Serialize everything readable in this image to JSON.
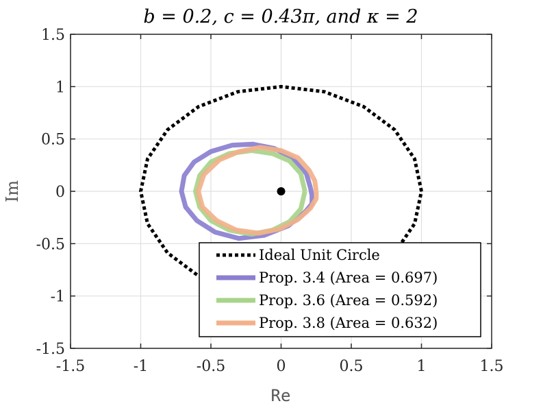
{
  "chart_data": {
    "type": "line",
    "title": "b = 0.2,  c = 0.43π, and κ = 2",
    "xlabel": "Re",
    "ylabel": "Im",
    "xlim": [
      -1.5,
      1.5
    ],
    "ylim": [
      -1.5,
      1.5
    ],
    "xticks": [
      -1.5,
      -1,
      -0.5,
      0,
      0.5,
      1,
      1.5
    ],
    "yticks": [
      -1.5,
      -1,
      -0.5,
      0,
      0.5,
      1,
      1.5
    ],
    "xtick_labels": [
      "-1.5",
      "-1",
      "-0.5",
      "0",
      "0.5",
      "1",
      "1.5"
    ],
    "ytick_labels": [
      "-1.5",
      "-1",
      "-0.5",
      "0",
      "0.5",
      "1",
      "1.5"
    ],
    "grid": true,
    "legend_position": "bottom-right",
    "center_point": {
      "x": 0,
      "y": 0
    },
    "series": [
      {
        "name": "Ideal Unit Circle",
        "style": "dotted",
        "color": "#000000",
        "points": [
          [
            1,
            0
          ],
          [
            0.951,
            0.309
          ],
          [
            0.809,
            0.588
          ],
          [
            0.588,
            0.809
          ],
          [
            0.309,
            0.951
          ],
          [
            0,
            1
          ],
          [
            -0.309,
            0.951
          ],
          [
            -0.588,
            0.809
          ],
          [
            -0.809,
            0.588
          ],
          [
            -0.951,
            0.309
          ],
          [
            -1,
            0
          ],
          [
            -0.951,
            -0.309
          ],
          [
            -0.809,
            -0.588
          ],
          [
            -0.588,
            -0.809
          ],
          [
            -0.309,
            -0.951
          ],
          [
            0,
            -1
          ],
          [
            0.309,
            -0.951
          ],
          [
            0.588,
            -0.809
          ],
          [
            0.809,
            -0.588
          ],
          [
            0.951,
            -0.309
          ],
          [
            1,
            0
          ]
        ]
      },
      {
        "name": "Prop. 3.4 (Area = 0.697)",
        "style": "solid",
        "color": "#8a7fd0",
        "points": [
          [
            0.21,
            0.03
          ],
          [
            0.18,
            0.17
          ],
          [
            0.08,
            0.32
          ],
          [
            -0.05,
            0.41
          ],
          [
            -0.2,
            0.45
          ],
          [
            -0.35,
            0.44
          ],
          [
            -0.5,
            0.38
          ],
          [
            -0.62,
            0.28
          ],
          [
            -0.69,
            0.15
          ],
          [
            -0.71,
            0.0
          ],
          [
            -0.68,
            -0.15
          ],
          [
            -0.6,
            -0.28
          ],
          [
            -0.47,
            -0.39
          ],
          [
            -0.3,
            -0.45
          ],
          [
            -0.12,
            -0.42
          ],
          [
            0.05,
            -0.33
          ],
          [
            0.17,
            -0.2
          ],
          [
            0.22,
            -0.12
          ],
          [
            0.22,
            -0.04
          ],
          [
            0.21,
            0.03
          ]
        ]
      },
      {
        "name": "Prop. 3.6 (Area = 0.592)",
        "style": "solid",
        "color": "#a8d48a",
        "points": [
          [
            0.17,
            0.0
          ],
          [
            0.14,
            0.17
          ],
          [
            0.06,
            0.29
          ],
          [
            -0.06,
            0.36
          ],
          [
            -0.21,
            0.39
          ],
          [
            -0.37,
            0.36
          ],
          [
            -0.5,
            0.28
          ],
          [
            -0.58,
            0.15
          ],
          [
            -0.61,
            0.0
          ],
          [
            -0.58,
            -0.15
          ],
          [
            -0.5,
            -0.28
          ],
          [
            -0.37,
            -0.37
          ],
          [
            -0.21,
            -0.41
          ],
          [
            -0.06,
            -0.37
          ],
          [
            0.06,
            -0.29
          ],
          [
            0.14,
            -0.17
          ],
          [
            0.17,
            0.0
          ]
        ]
      },
      {
        "name": "Prop. 3.8 (Area = 0.632)",
        "style": "solid",
        "color": "#f2b18a",
        "points": [
          [
            0.25,
            0.0
          ],
          [
            0.24,
            0.1
          ],
          [
            0.2,
            0.2
          ],
          [
            0.12,
            0.32
          ],
          [
            0.0,
            0.39
          ],
          [
            -0.15,
            0.42
          ],
          [
            -0.3,
            0.38
          ],
          [
            -0.44,
            0.3
          ],
          [
            -0.55,
            0.16
          ],
          [
            -0.59,
            0.0
          ],
          [
            -0.56,
            -0.15
          ],
          [
            -0.46,
            -0.28
          ],
          [
            -0.32,
            -0.37
          ],
          [
            -0.16,
            -0.4
          ],
          [
            -0.01,
            -0.36
          ],
          [
            0.12,
            -0.27
          ],
          [
            0.21,
            -0.16
          ],
          [
            0.25,
            -0.07
          ],
          [
            0.25,
            0.0
          ]
        ]
      }
    ]
  }
}
